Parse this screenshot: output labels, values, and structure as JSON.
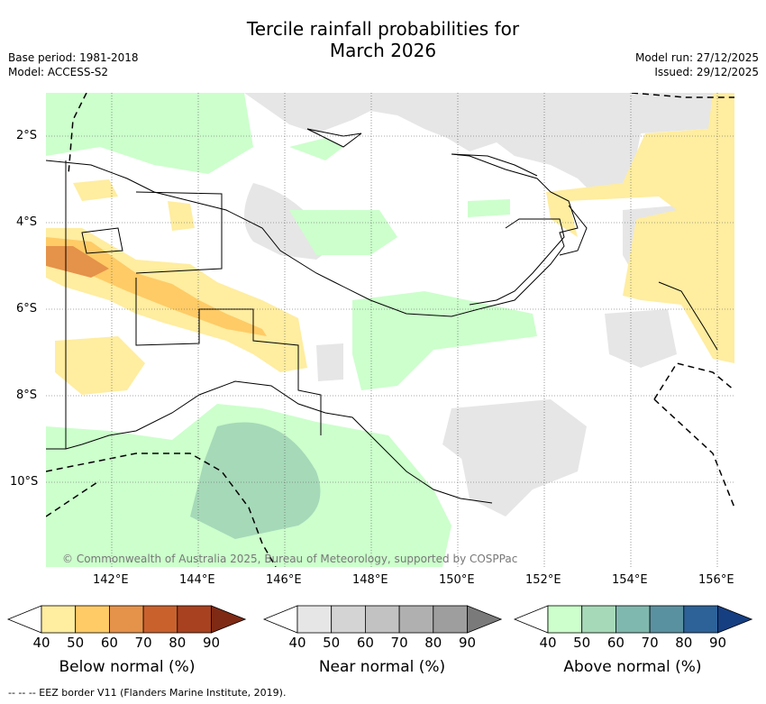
{
  "title_line1": "Tercile rainfall probabilities for",
  "title_line2": "March 2026",
  "base_period": "Base period: 1981-2018",
  "model": "Model: ACCESS-S2",
  "model_run": "Model run: 27/12/2025",
  "issued": "Issued: 29/12/2025",
  "copyright": "© Commonwealth of Australia 2025, Bureau of Meteorology, supported by COSPPac",
  "lat_labels": [
    "2°S",
    "4°S",
    "6°S",
    "8°S",
    "10°S"
  ],
  "lon_labels": [
    "142°E",
    "144°E",
    "146°E",
    "148°E",
    "150°E",
    "152°E",
    "154°E",
    "156°E"
  ],
  "colorbars": [
    {
      "label": "Below normal (%)",
      "ticks": [
        "40",
        "50",
        "60",
        "70",
        "80",
        "90"
      ],
      "colors": [
        "#ffeda0",
        "#fecb66",
        "#e5924a",
        "#c9612d",
        "#a8411f",
        "#7f2a14"
      ]
    },
    {
      "label": "Near normal (%)",
      "ticks": [
        "40",
        "50",
        "60",
        "70",
        "80",
        "90"
      ],
      "colors": [
        "#e6e6e6",
        "#d4d4d4",
        "#c2c2c2",
        "#b0b0b0",
        "#9e9e9e",
        "#7a7a7a"
      ]
    },
    {
      "label": "Above normal (%)",
      "ticks": [
        "40",
        "50",
        "60",
        "70",
        "80",
        "90"
      ],
      "colors": [
        "#ccffcc",
        "#a6d9b8",
        "#7fb8ae",
        "#5a91a0",
        "#2d6298",
        "#163f82"
      ]
    }
  ],
  "footer": "--  --  -- EEZ border V11 (Flanders Marine Institute, 2019)."
}
